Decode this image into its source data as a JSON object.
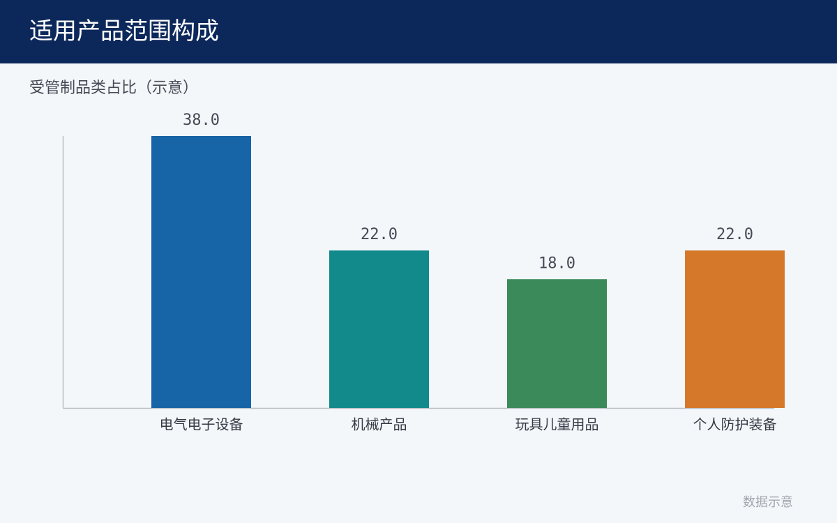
{
  "header": {
    "title": "适用产品范围构成"
  },
  "chart_data": {
    "type": "bar",
    "title": "受管制品类占比（示意）",
    "categories": [
      "电气电子设备",
      "机械产品",
      "玩具儿童用品",
      "个人防护装备"
    ],
    "values": [
      38,
      22,
      18,
      22
    ],
    "value_labels": [
      "38.0",
      "22.0",
      "18.0",
      "22.0"
    ],
    "colors": [
      "#1764a6",
      "#128a8c",
      "#3a8a5a",
      "#d6782a"
    ],
    "ylim": [
      0,
      38
    ]
  },
  "footer": {
    "note": "数据示意"
  }
}
